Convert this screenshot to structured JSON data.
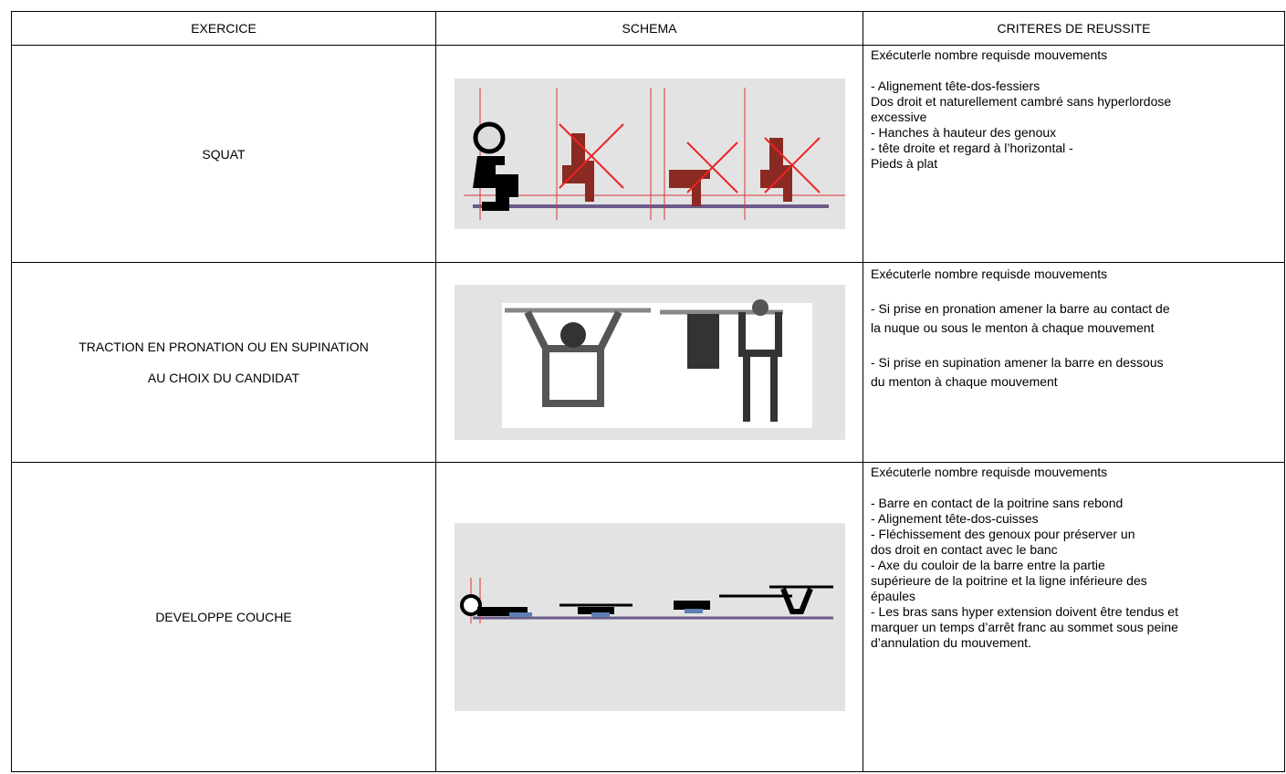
{
  "header": [
    "EXERCICE",
    "SCHEMA",
    "CRITERES DE REUSSITE"
  ],
  "rows": [
    {
      "exercise": [
        "SQUAT"
      ],
      "criteria": [
        [
          "Exécuterle nombre requisde mouvements"
        ],
        [
          "- Alignement tête-dos-fessiers",
          "Dos droit et naturellement cambré sans hyperlordose",
          "excessive",
          "- Hanches à hauteur des genoux",
          "- tête droite et regard à l’horizontal -",
          "Pieds à plat"
        ]
      ]
    },
    {
      "exercise": [
        "TRACTION EN PRONATION OU EN SUPINATION",
        "AU CHOIX DU CANDIDAT"
      ],
      "criteria": [
        [
          "Exécuterle nombre requisde mouvements"
        ],
        [
          "- Si prise en pronation amener la barre au contact de",
          "la nuque ou sous le menton à chaque mouvement"
        ],
        [
          "- Si prise en supination amener la barre en dessous",
          "du menton à chaque mouvement"
        ]
      ]
    },
    {
      "exercise": [
        "DEVELOPPE COUCHE"
      ],
      "criteria": [
        [
          "Exécuterle nombre requisde mouvements"
        ],
        [
          "- Barre en contact de la poitrine sans rebond",
          "- Alignement tête-dos-cuisses",
          "- Fléchissement des genoux pour préserver un",
          "dos droit en contact avec le banc",
          "- Axe du couloir de la barre entre la partie",
          "supérieure de la poitrine et la ligne inférieure des",
          "épaules",
          "- Les bras sans hyper extension doivent être tendus et",
          "marquer un temps d’arrêt franc au sommet sous peine",
          "d’annulation du mouvement."
        ]
      ]
    }
  ]
}
